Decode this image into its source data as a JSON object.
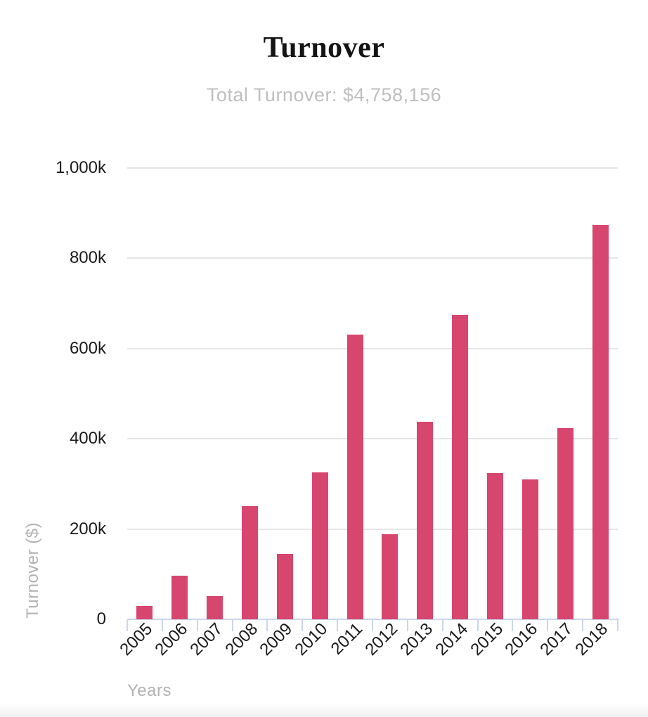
{
  "chart_data": {
    "type": "bar",
    "title": "Turnover",
    "subtitle": "Total Turnover: $4,758,156",
    "total_turnover": "$4,758,156",
    "xlabel": "Years",
    "ylabel": "Turnover ($)",
    "categories": [
      "2005",
      "2006",
      "2007",
      "2008",
      "2009",
      "2010",
      "2011",
      "2012",
      "2013",
      "2014",
      "2015",
      "2016",
      "2017",
      "2018"
    ],
    "values": [
      29000,
      97000,
      51000,
      250400,
      144300,
      325600,
      630100,
      188000,
      437300,
      674700,
      323500,
      310400,
      423000,
      873856
    ],
    "y_ticks": [
      {
        "value": 0,
        "label": "0"
      },
      {
        "value": 200000,
        "label": "200k"
      },
      {
        "value": 400000,
        "label": "400k"
      },
      {
        "value": 600000,
        "label": "600k"
      },
      {
        "value": 800000,
        "label": "800k"
      },
      {
        "value": 1000000,
        "label": "1,000k"
      }
    ],
    "ylim": [
      0,
      1000000
    ],
    "grid": true,
    "legend": "none",
    "colors": {
      "bar": "#d7466e",
      "gridline": "#e6e6e6",
      "axis_line": "#ccd6eb",
      "tick_label": "#1a1a1a",
      "axis_title": "#b3b3b3",
      "title": "#141414",
      "subtitle": "#bfbfbf"
    }
  }
}
